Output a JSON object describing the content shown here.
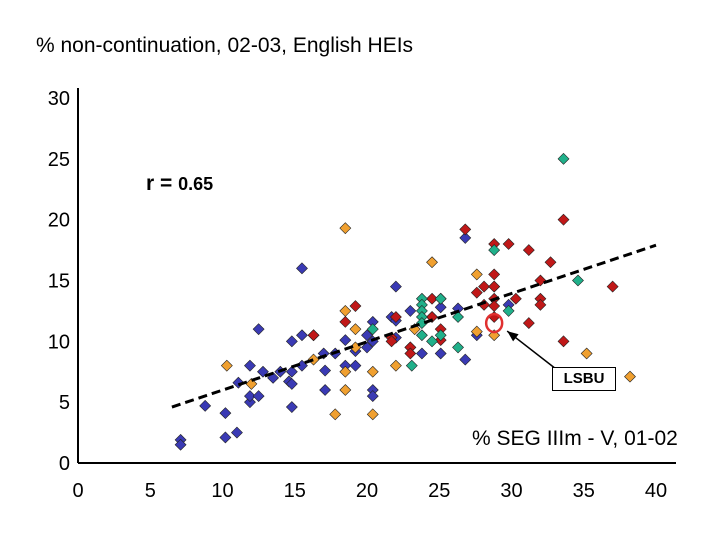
{
  "chart_data": {
    "type": "scatter",
    "title": "% non-continuation, 02-03, English HEIs",
    "xlabel": "% SEG IIIm - V, 01-02",
    "ylabel": "",
    "xlim": [
      0,
      40
    ],
    "ylim": [
      0,
      30
    ],
    "x_ticks": [
      "0",
      "5",
      "10",
      "15",
      "20",
      "25",
      "30",
      "35",
      "40"
    ],
    "y_ticks": [
      "0",
      "5",
      "10",
      "15",
      "20",
      "25",
      "30"
    ],
    "grid": false,
    "correlation_label": {
      "prefix": "r = ",
      "value": "0.65"
    },
    "trendline": {
      "style": "dashed",
      "x": [
        6.5,
        40
      ],
      "y": [
        4.6,
        17.9
      ]
    },
    "highlight": {
      "label": "LSBU",
      "x": 28.8,
      "y": 11.5
    },
    "colors": {
      "blue": "#3a3ab4",
      "orange": "#f0a030",
      "red": "#c01818",
      "teal": "#20b08a",
      "highlight": "#e03030"
    },
    "series": [
      {
        "color": "#3a3ab4",
        "points": [
          [
            7.1,
            1.9
          ],
          [
            7.1,
            1.5
          ],
          [
            8.8,
            4.7
          ],
          [
            10.2,
            2.1
          ],
          [
            10.2,
            4.1
          ],
          [
            11.0,
            2.5
          ],
          [
            11.1,
            6.6
          ],
          [
            11.9,
            5.0
          ],
          [
            11.9,
            5.5
          ],
          [
            11.9,
            8.0
          ],
          [
            12.5,
            11.0
          ],
          [
            12.5,
            5.5
          ],
          [
            12.8,
            7.5
          ],
          [
            13.5,
            7.0
          ],
          [
            14.0,
            7.5
          ],
          [
            14.6,
            6.7
          ],
          [
            14.8,
            10.0
          ],
          [
            14.8,
            7.5
          ],
          [
            14.8,
            4.6
          ],
          [
            14.8,
            6.5
          ],
          [
            15.5,
            8.0
          ],
          [
            15.5,
            16.0
          ],
          [
            15.5,
            10.5
          ],
          [
            16.3,
            10.5
          ],
          [
            17.0,
            9.0
          ],
          [
            17.1,
            7.6
          ],
          [
            17.1,
            6.0
          ],
          [
            17.8,
            9.0
          ],
          [
            18.5,
            10.1
          ],
          [
            18.5,
            8.0
          ],
          [
            19.2,
            9.2
          ],
          [
            19.2,
            8.0
          ],
          [
            20.0,
            10.5
          ],
          [
            20.0,
            9.5
          ],
          [
            20.4,
            6.0
          ],
          [
            20.4,
            5.5
          ],
          [
            20.4,
            11.6
          ],
          [
            20.4,
            10.0
          ],
          [
            21.7,
            12.0
          ],
          [
            22.0,
            10.3
          ],
          [
            22.0,
            14.5
          ],
          [
            22.0,
            11.7
          ],
          [
            23.0,
            12.5
          ],
          [
            23.0,
            9.5
          ],
          [
            23.8,
            9.0
          ],
          [
            24.5,
            12.0
          ],
          [
            25.1,
            9.0
          ],
          [
            25.1,
            12.8
          ],
          [
            26.3,
            12.7
          ],
          [
            26.8,
            8.5
          ],
          [
            26.8,
            18.5
          ],
          [
            27.6,
            10.5
          ],
          [
            29.8,
            13.0
          ]
        ]
      },
      {
        "color": "#f0a030",
        "points": [
          [
            10.3,
            8.0
          ],
          [
            12.0,
            6.5
          ],
          [
            16.3,
            8.5
          ],
          [
            17.8,
            4.0
          ],
          [
            18.5,
            6.0
          ],
          [
            18.5,
            7.5
          ],
          [
            18.5,
            12.5
          ],
          [
            18.5,
            19.3
          ],
          [
            19.2,
            9.5
          ],
          [
            19.2,
            11.0
          ],
          [
            20.4,
            4.0
          ],
          [
            20.4,
            7.5
          ],
          [
            22.0,
            8.0
          ],
          [
            23.3,
            11.0
          ],
          [
            24.5,
            16.5
          ],
          [
            27.6,
            15.5
          ],
          [
            27.6,
            10.8
          ],
          [
            28.8,
            10.5
          ],
          [
            28.8,
            14.5
          ],
          [
            35.2,
            9.0
          ],
          [
            38.2,
            7.1
          ]
        ]
      },
      {
        "color": "#c01818",
        "points": [
          [
            16.3,
            10.5
          ],
          [
            18.5,
            11.6
          ],
          [
            19.2,
            12.9
          ],
          [
            21.7,
            10.3
          ],
          [
            21.7,
            10.0
          ],
          [
            22.0,
            12.0
          ],
          [
            23.0,
            9.5
          ],
          [
            23.0,
            9.0
          ],
          [
            24.5,
            13.5
          ],
          [
            24.5,
            12.0
          ],
          [
            25.1,
            11.0
          ],
          [
            25.1,
            10.1
          ],
          [
            25.1,
            13.5
          ],
          [
            26.8,
            19.2
          ],
          [
            27.6,
            14.0
          ],
          [
            28.1,
            14.5
          ],
          [
            28.1,
            13.0
          ],
          [
            28.8,
            18.0
          ],
          [
            28.8,
            15.5
          ],
          [
            28.8,
            14.5
          ],
          [
            28.8,
            13.5
          ],
          [
            28.8,
            12.9
          ],
          [
            28.8,
            12.0
          ],
          [
            29.8,
            18.0
          ],
          [
            30.3,
            13.5
          ],
          [
            31.2,
            17.5
          ],
          [
            31.2,
            11.5
          ],
          [
            32.0,
            15.0
          ],
          [
            32.0,
            13.5
          ],
          [
            32.0,
            13.0
          ],
          [
            32.7,
            16.5
          ],
          [
            33.6,
            20.0
          ],
          [
            33.6,
            10.0
          ],
          [
            37.0,
            14.5
          ]
        ]
      },
      {
        "color": "#20b08a",
        "points": [
          [
            20.4,
            11.0
          ],
          [
            23.1,
            8.0
          ],
          [
            23.8,
            13.5
          ],
          [
            23.8,
            13.0
          ],
          [
            23.8,
            12.5
          ],
          [
            23.8,
            12.0
          ],
          [
            23.8,
            11.5
          ],
          [
            23.8,
            10.5
          ],
          [
            24.5,
            10.0
          ],
          [
            25.1,
            13.5
          ],
          [
            25.1,
            10.5
          ],
          [
            26.3,
            9.5
          ],
          [
            26.3,
            12.0
          ],
          [
            28.8,
            17.5
          ],
          [
            29.8,
            12.5
          ],
          [
            33.6,
            25.0
          ],
          [
            34.6,
            15.0
          ]
        ]
      }
    ]
  }
}
